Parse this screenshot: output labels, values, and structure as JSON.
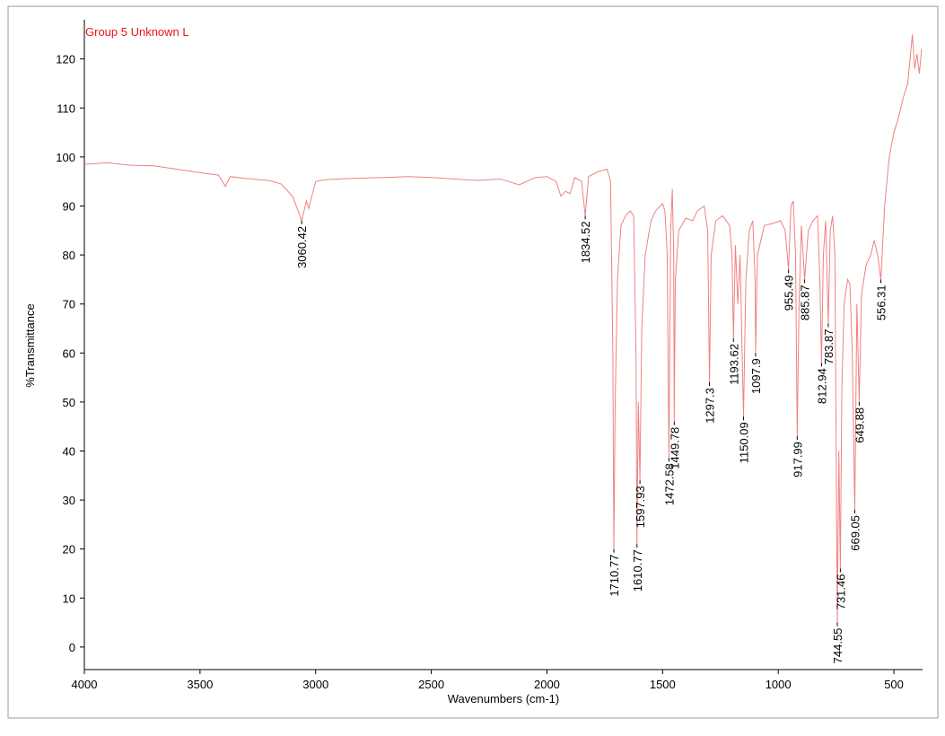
{
  "chart_data": {
    "type": "line",
    "title": "Group 5 Unknown L",
    "x_label": "Wavenumbers (cm-1)",
    "y_label": "%Transmittance",
    "color": "#f08080",
    "title_color": "#e8141c",
    "x": [
      4000,
      3900,
      3800,
      3700,
      3600,
      3500,
      3420,
      3390,
      3370,
      3300,
      3200,
      3150,
      3100,
      3080,
      3060.42,
      3040,
      3030,
      3000,
      2950,
      2900,
      2800,
      2700,
      2600,
      2500,
      2400,
      2300,
      2200,
      2120,
      2050,
      2000,
      1960,
      1940,
      1920,
      1900,
      1880,
      1850,
      1834.52,
      1820,
      1780,
      1740,
      1725,
      1715,
      1710.77,
      1705,
      1695,
      1680,
      1660,
      1640,
      1625,
      1615,
      1610.77,
      1605,
      1597.93,
      1590,
      1575,
      1550,
      1530,
      1500,
      1490,
      1480,
      1472.58,
      1465,
      1458,
      1452,
      1449.78,
      1445,
      1430,
      1400,
      1370,
      1350,
      1320,
      1305,
      1297.3,
      1290,
      1270,
      1240,
      1210,
      1200,
      1193.62,
      1185,
      1175,
      1165,
      1150.09,
      1140,
      1125,
      1110,
      1100,
      1097.9,
      1090,
      1060,
      1020,
      990,
      970,
      955.49,
      945,
      935,
      925,
      917.99,
      910,
      900,
      885.87,
      870,
      850,
      830,
      820,
      812.94,
      805,
      795,
      783.87,
      775,
      765,
      755,
      744.55,
      738,
      731.46,
      725,
      715,
      700,
      690,
      680,
      669.05,
      660,
      649.88,
      640,
      620,
      600,
      585,
      570,
      556.31,
      540,
      520,
      500,
      480,
      460,
      440,
      420,
      410,
      400,
      390,
      380
    ],
    "values": [
      98.5,
      98.8,
      98.3,
      98.2,
      97.5,
      96.8,
      96.3,
      94,
      96,
      95.6,
      95.2,
      94.5,
      92,
      89.5,
      87,
      91,
      89.5,
      95,
      95.4,
      95.5,
      95.7,
      95.8,
      96,
      95.8,
      95.5,
      95.2,
      95.5,
      94.3,
      95.8,
      96,
      95,
      92,
      93,
      92.5,
      95.8,
      95,
      88,
      96,
      97,
      97.5,
      95,
      60,
      20,
      50,
      75,
      86,
      88,
      89,
      88,
      60,
      21,
      50,
      34,
      65,
      80,
      87,
      89,
      90.5,
      89,
      80,
      38.6,
      85,
      93.5,
      80,
      46,
      75,
      85,
      87.5,
      87,
      89,
      90,
      85,
      54,
      80,
      87,
      88,
      86,
      80,
      63,
      82,
      70,
      80,
      47,
      75,
      85,
      87,
      75,
      60,
      80,
      86,
      86.5,
      87,
      85,
      77,
      90,
      91,
      80,
      43,
      70,
      86,
      75,
      85,
      87,
      88,
      75,
      58,
      80,
      87,
      66,
      85,
      88,
      80,
      5,
      40,
      16,
      53,
      70,
      75,
      74,
      60,
      28,
      70,
      50,
      72,
      78,
      80,
      83,
      80,
      75,
      90,
      100,
      105,
      108,
      112,
      115,
      125,
      118,
      121,
      117,
      122
    ],
    "peaks": {
      "x": [
        3060.42,
        1834.52,
        1710.77,
        1610.77,
        1597.93,
        1472.58,
        1449.78,
        1297.3,
        1193.62,
        1150.09,
        1097.9,
        955.49,
        917.99,
        885.87,
        812.94,
        783.87,
        744.55,
        731.46,
        669.05,
        649.88,
        556.31
      ],
      "y": [
        87,
        88,
        20,
        21,
        34,
        38.6,
        46,
        54,
        63,
        47,
        60,
        77,
        43,
        75,
        58,
        66,
        5,
        16,
        28,
        50,
        75
      ]
    },
    "xlim": [
      4000,
      376
    ],
    "ylim": [
      -4.6,
      128
    ],
    "xticks": [
      4000,
      3500,
      3000,
      2500,
      2000,
      1500,
      1000,
      500
    ],
    "yticks": [
      0,
      10,
      20,
      30,
      40,
      50,
      60,
      70,
      80,
      90,
      100,
      110,
      120
    ]
  }
}
